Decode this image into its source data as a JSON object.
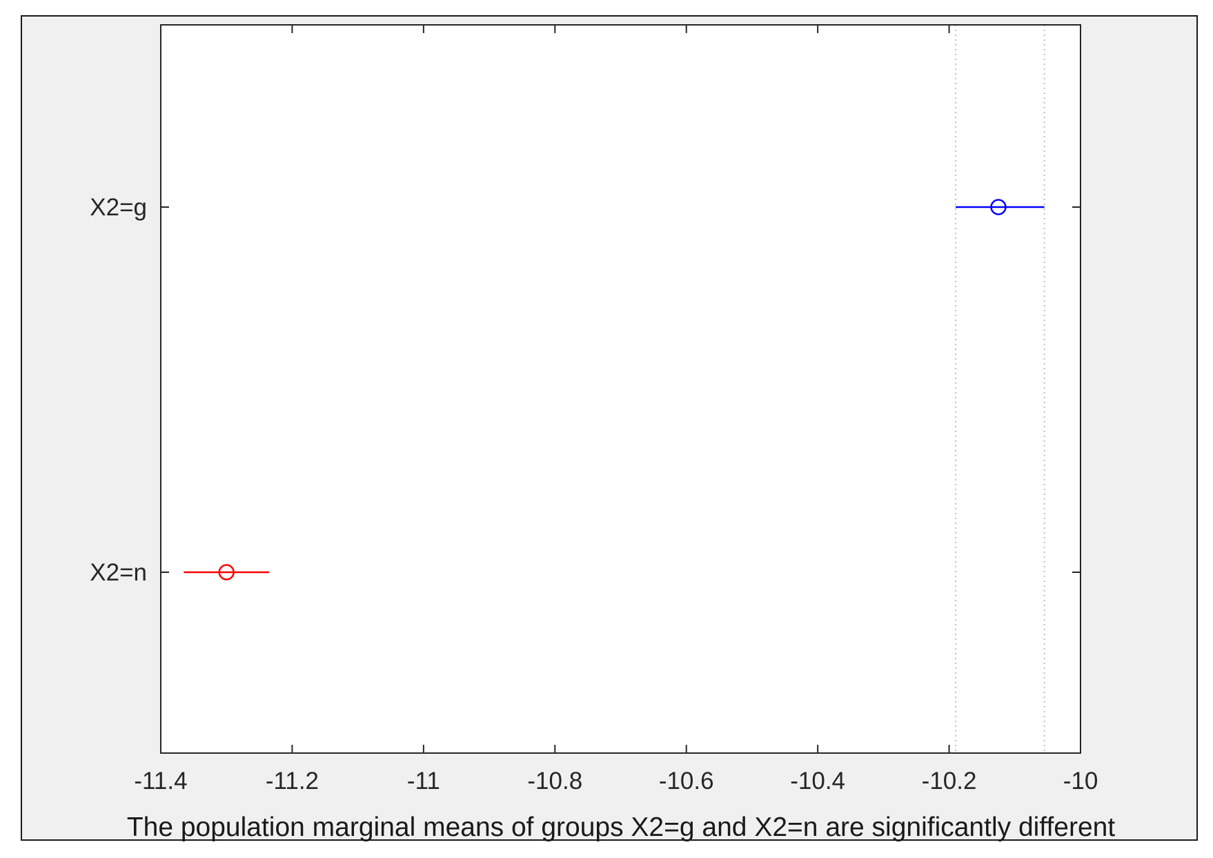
{
  "chart_data": {
    "type": "scatter",
    "title": "",
    "xlabel": "The population marginal means of groups X2=g and X2=n are significantly different",
    "ylabel": "",
    "xlim": [
      -11.4,
      -10
    ],
    "xticks": [
      -11.4,
      -11.2,
      -11,
      -10.8,
      -10.6,
      -10.4,
      -10.2,
      -10
    ],
    "xtick_labels": [
      "-11.4",
      "-11.2",
      "-11",
      "-10.8",
      "-10.6",
      "-10.4",
      "-10.2",
      "-10"
    ],
    "categories": [
      "X2=g",
      "X2=n"
    ],
    "grid": false,
    "legend": "none",
    "reference_lines_x": [
      -10.19,
      -10.055
    ],
    "groups": [
      {
        "label": "X2=g",
        "mean": -10.125,
        "lower": -10.19,
        "upper": -10.055,
        "color": "#0000ff"
      },
      {
        "label": "X2=n",
        "mean": -11.3,
        "lower": -11.365,
        "upper": -11.235,
        "color": "#ff0000"
      }
    ]
  },
  "colors": {
    "figure_background": "#f0f0f0",
    "axes_background": "#ffffff",
    "axes_color": "#262626",
    "reference_line": "#bdbdbd"
  }
}
